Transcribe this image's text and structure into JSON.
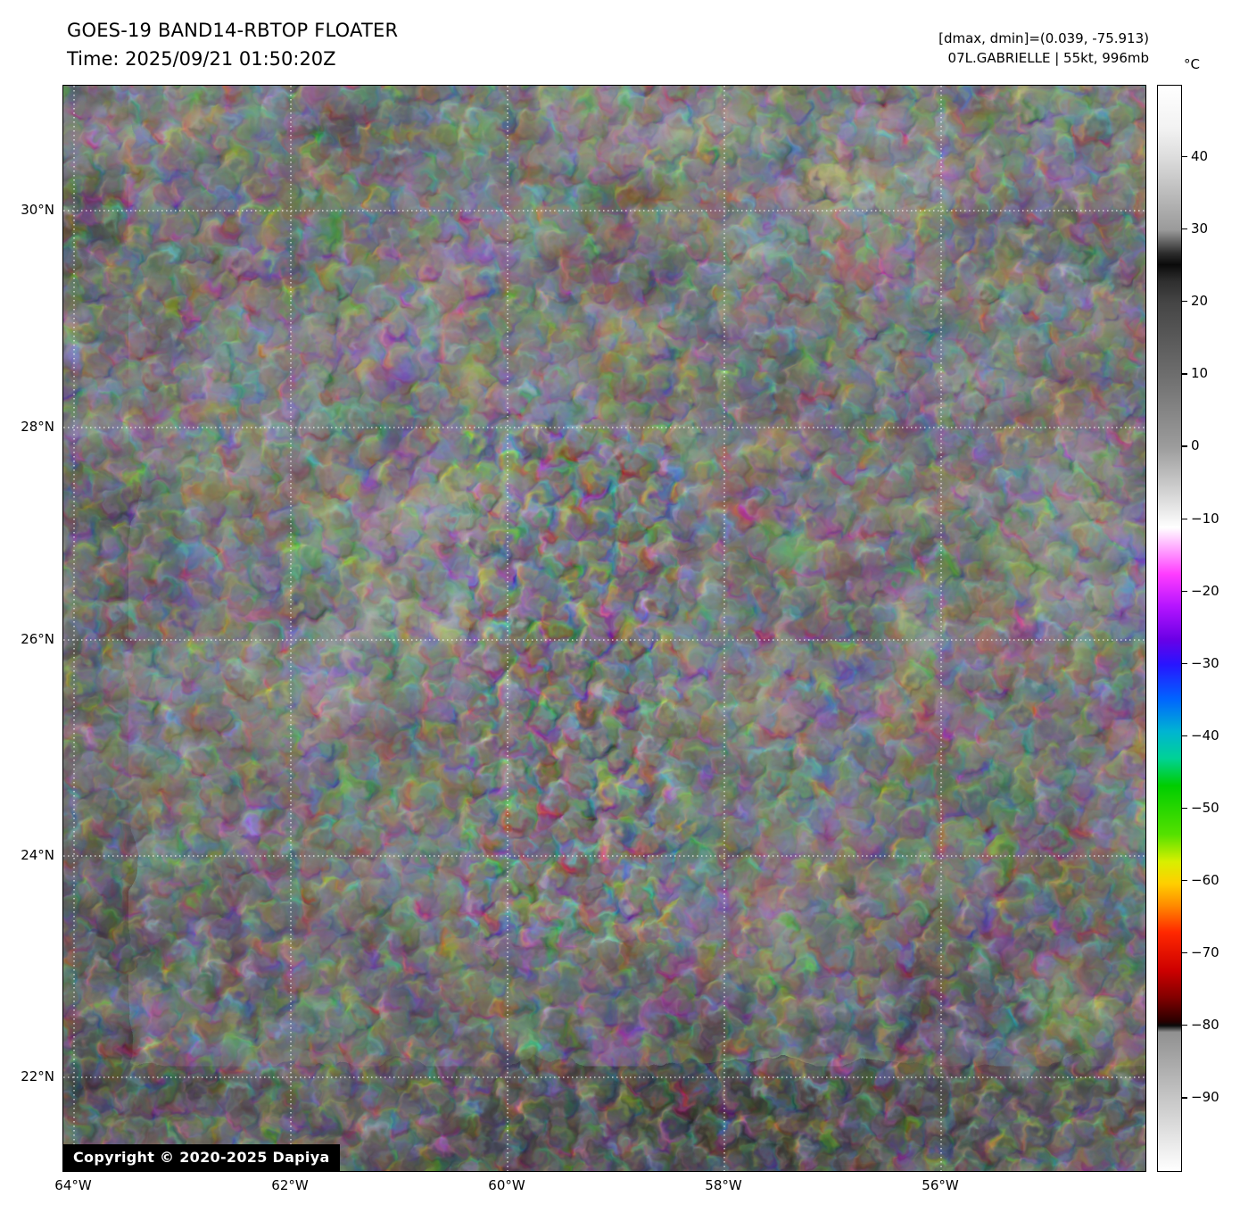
{
  "header": {
    "title": "GOES-19 BAND14-RBTOP FLOATER",
    "time": "Time: 2025/09/21 01:50:20Z",
    "dminmax": "[dmax, dmin]=(0.039, -75.913)",
    "storm": "07L.GABRIELLE | 55kt, 996mb"
  },
  "map": {
    "lat_tick_labels": [
      "30°N",
      "28°N",
      "26°N",
      "24°N",
      "22°N"
    ],
    "lon_tick_labels": [
      "64°W",
      "62°W",
      "60°W",
      "58°W",
      "56°W"
    ],
    "copyright": "Copyright © 2020-2025 Dapiya"
  },
  "colorbar": {
    "unit": "°C",
    "tick_labels": [
      "40",
      "30",
      "20",
      "10",
      "0",
      "−10",
      "−20",
      "−30",
      "−40",
      "−50",
      "−60",
      "−70",
      "−80",
      "−90"
    ],
    "gradient": [
      {
        "p": 0,
        "c": "#ffffff"
      },
      {
        "p": 4,
        "c": "#f2f2f2"
      },
      {
        "p": 6.7,
        "c": "#dcdcdc"
      },
      {
        "p": 13.3,
        "c": "#9a9a9a"
      },
      {
        "p": 15.5,
        "c": "#2a2a2a"
      },
      {
        "p": 16.5,
        "c": "#0a0a0a"
      },
      {
        "p": 18,
        "c": "#2e2e2e"
      },
      {
        "p": 20,
        "c": "#454545"
      },
      {
        "p": 26.7,
        "c": "#6e6e6e"
      },
      {
        "p": 33.3,
        "c": "#9c9c9c"
      },
      {
        "p": 39.5,
        "c": "#eeeeee"
      },
      {
        "p": 40.7,
        "c": "#ffffff"
      },
      {
        "p": 42,
        "c": "#ffc4ff"
      },
      {
        "p": 45,
        "c": "#ff3cff"
      },
      {
        "p": 48,
        "c": "#b414ff"
      },
      {
        "p": 51,
        "c": "#6a00e6"
      },
      {
        "p": 53.3,
        "c": "#2814ff"
      },
      {
        "p": 56.5,
        "c": "#0064ff"
      },
      {
        "p": 59.5,
        "c": "#00b4d2"
      },
      {
        "p": 62,
        "c": "#00d295"
      },
      {
        "p": 64.5,
        "c": "#00cd00"
      },
      {
        "p": 69,
        "c": "#55e100"
      },
      {
        "p": 71.5,
        "c": "#d8ef00"
      },
      {
        "p": 73.5,
        "c": "#ffcf00"
      },
      {
        "p": 75.5,
        "c": "#ff8c00"
      },
      {
        "p": 78,
        "c": "#ff2800"
      },
      {
        "p": 81.5,
        "c": "#cd0000"
      },
      {
        "p": 84,
        "c": "#820000"
      },
      {
        "p": 86.2,
        "c": "#2a0000"
      },
      {
        "p": 86.6,
        "c": "#0a0a0a"
      },
      {
        "p": 87.2,
        "c": "#909090"
      },
      {
        "p": 93.3,
        "c": "#c6c6c6"
      },
      {
        "p": 100,
        "c": "#ffffff"
      }
    ]
  }
}
